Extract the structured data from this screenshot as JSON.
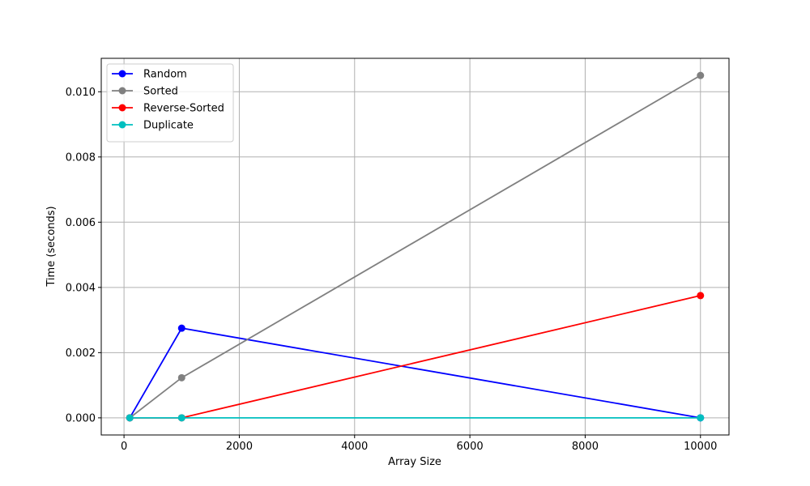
{
  "chart_data": {
    "type": "line",
    "title": "",
    "xlabel": "Array Size",
    "ylabel": "Time (seconds)",
    "x": [
      100,
      1000,
      10000
    ],
    "xlim": [
      -395,
      10495
    ],
    "ylim": [
      -0.000525,
      0.011025
    ],
    "xticks": [
      0,
      2000,
      4000,
      6000,
      8000,
      10000
    ],
    "xtick_labels": [
      "0",
      "2000",
      "4000",
      "6000",
      "8000",
      "10000"
    ],
    "yticks": [
      0,
      0.002,
      0.004,
      0.006,
      0.008,
      0.01
    ],
    "ytick_labels": [
      "0.000",
      "0.002",
      "0.004",
      "0.006",
      "0.008",
      "0.010"
    ],
    "grid": true,
    "legend_position": "top-left",
    "series": [
      {
        "name": "Random",
        "color": "#0000ff",
        "values": [
          0.0,
          0.00275,
          0.0
        ]
      },
      {
        "name": "Sorted",
        "color": "#808080",
        "values": [
          0.0,
          0.00123,
          0.0105
        ]
      },
      {
        "name": "Reverse-Sorted",
        "color": "#ff0000",
        "values": [
          0.0,
          0.0,
          0.00375
        ]
      },
      {
        "name": "Duplicate",
        "color": "#00bfbf",
        "values": [
          0.0,
          0.0,
          0.0
        ]
      }
    ]
  }
}
